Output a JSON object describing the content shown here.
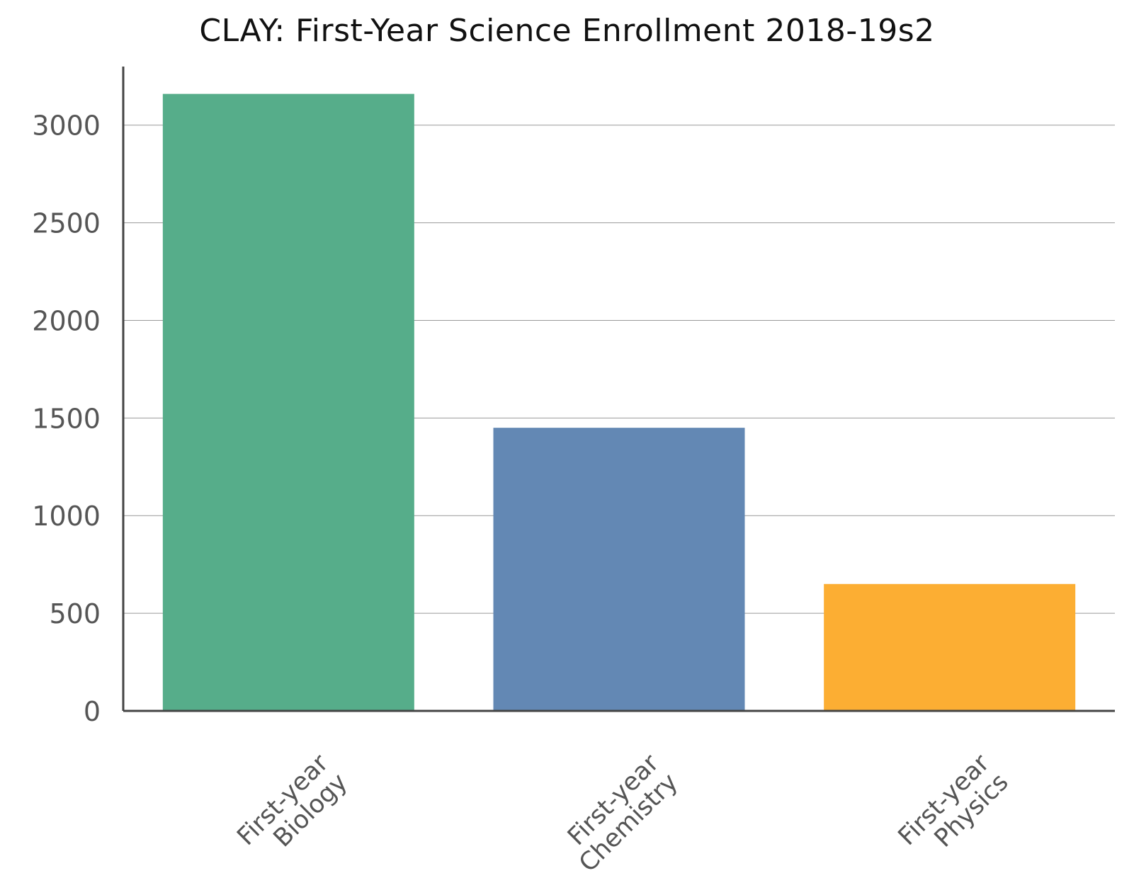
{
  "chart_data": {
    "type": "bar",
    "title": "CLAY: First-Year Science Enrollment 2018-19s2",
    "xlabel": "",
    "ylabel": "",
    "categories": [
      [
        "First-year",
        "Biology"
      ],
      [
        "First-year",
        "Chemistry"
      ],
      [
        "First-year",
        "Physics"
      ]
    ],
    "values": [
      3160,
      1450,
      650
    ],
    "colors": [
      "#56ad8a",
      "#6388b4",
      "#fcae33"
    ],
    "ylim": [
      0,
      3300
    ],
    "yticks": [
      0,
      500,
      1000,
      1500,
      2000,
      2500,
      3000
    ],
    "grid": true,
    "legend": "none"
  }
}
